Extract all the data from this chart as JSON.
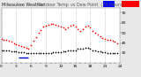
{
  "title_left": "Milwaukee Weather",
  "title_right": "Outdoor Temp vs Dew Point (24 Hours)",
  "bg_color": "#e8e8e8",
  "plot_bg": "#ffffff",
  "grid_color": "#aaaaaa",
  "temp_color": "#ff0000",
  "dew_dot_color": "#000000",
  "dew_line_color": "#0000cc",
  "legend_blue_color": "#0000ff",
  "legend_red_color": "#ff0000",
  "ylim": [
    20,
    75
  ],
  "yticks": [
    30,
    40,
    50,
    60,
    70
  ],
  "temp_x": [
    0,
    0.5,
    1,
    1.5,
    2,
    2.5,
    3,
    3.5,
    4,
    4.5,
    5,
    5.5,
    6,
    6.5,
    7,
    7.5,
    8,
    8.5,
    9,
    9.5,
    10,
    10.5,
    11,
    11.5,
    12,
    12.5,
    13,
    13.5,
    14,
    14.5,
    15,
    15.5,
    16,
    16.5,
    17,
    17.5,
    18,
    18.5,
    19,
    19.5,
    20,
    20.5,
    21,
    21.5,
    22,
    22.5,
    23,
    23.5
  ],
  "temp_y": [
    44,
    43,
    43,
    42,
    41,
    40,
    39,
    38,
    37,
    36,
    35,
    34,
    38,
    42,
    46,
    50,
    53,
    56,
    57,
    58,
    59,
    59,
    58,
    57,
    56,
    55,
    54,
    55,
    57,
    58,
    56,
    54,
    52,
    54,
    56,
    57,
    55,
    52,
    50,
    48,
    47,
    45,
    44,
    43,
    43,
    42,
    41,
    40
  ],
  "dew_x": [
    0,
    0.5,
    1,
    1.5,
    2,
    2.5,
    3,
    3.5,
    4,
    4.5,
    5,
    5.5,
    6,
    6.5,
    7,
    7.5,
    8,
    8.5,
    9,
    9.5,
    10,
    10.5,
    11,
    11.5,
    12,
    12.5,
    13,
    13.5,
    14,
    14.5,
    15,
    15.5,
    16,
    16.5,
    17,
    17.5,
    18,
    18.5,
    19,
    19.5,
    20,
    20.5,
    21,
    21.5,
    22,
    22.5,
    23,
    23.5
  ],
  "dew_y": [
    33,
    33,
    33,
    33,
    32,
    32,
    32,
    31,
    31,
    31,
    30,
    30,
    30,
    30,
    30,
    30,
    30,
    30,
    30,
    30,
    30,
    31,
    31,
    31,
    31,
    32,
    32,
    33,
    33,
    33,
    33,
    34,
    34,
    34,
    35,
    35,
    34,
    33,
    33,
    32,
    32,
    31,
    31,
    30,
    30,
    30,
    30,
    30
  ],
  "dew_line_x": [
    3.5,
    5.5
  ],
  "dew_line_y": [
    26,
    26
  ],
  "vgrid_x": [
    0,
    3,
    6,
    9,
    12,
    15,
    18,
    21,
    24
  ],
  "xlim": [
    0,
    24
  ],
  "xticks": [
    0,
    1,
    2,
    3,
    4,
    5,
    6,
    7,
    8,
    9,
    10,
    11,
    12,
    13,
    14,
    15,
    16,
    17,
    18,
    19,
    20,
    21,
    22,
    23,
    24
  ],
  "xlabel_every": 3,
  "tick_fontsize": 3.2,
  "marker_size": 1.5
}
